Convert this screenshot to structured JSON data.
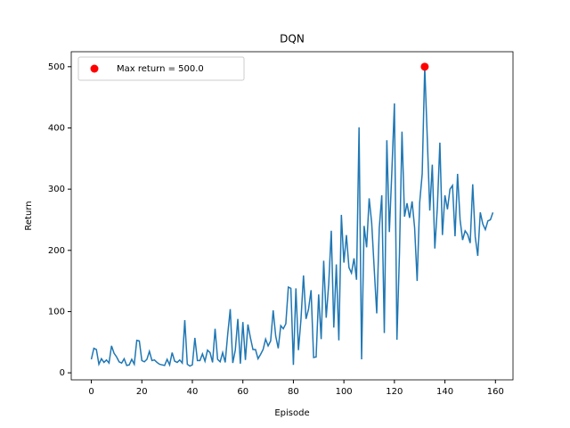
{
  "chart_data": {
    "type": "line",
    "title": "DQN",
    "x_label": "Episode",
    "y_label": "Return",
    "x": [
      0,
      1,
      2,
      3,
      4,
      5,
      6,
      7,
      8,
      9,
      10,
      11,
      12,
      13,
      14,
      15,
      16,
      17,
      18,
      19,
      20,
      21,
      22,
      23,
      24,
      25,
      26,
      27,
      28,
      29,
      30,
      31,
      32,
      33,
      34,
      35,
      36,
      37,
      38,
      39,
      40,
      41,
      42,
      43,
      44,
      45,
      46,
      47,
      48,
      49,
      50,
      51,
      52,
      53,
      54,
      55,
      56,
      57,
      58,
      59,
      60,
      61,
      62,
      63,
      64,
      65,
      66,
      67,
      68,
      69,
      70,
      71,
      72,
      73,
      74,
      75,
      76,
      77,
      78,
      79,
      80,
      81,
      82,
      83,
      84,
      85,
      86,
      87,
      88,
      89,
      90,
      91,
      92,
      93,
      94,
      95,
      96,
      97,
      98,
      99,
      100,
      101,
      102,
      103,
      104,
      105,
      106,
      107,
      108,
      109,
      110,
      111,
      112,
      113,
      114,
      115,
      116,
      117,
      118,
      119,
      120,
      121,
      122,
      123,
      124,
      125,
      126,
      127,
      128,
      129,
      130,
      131,
      132,
      133,
      134,
      135,
      136,
      137,
      138,
      139,
      140,
      141,
      142,
      143,
      144,
      145,
      146,
      147,
      148,
      149,
      150,
      151,
      152,
      153,
      154,
      155,
      156,
      157,
      158,
      159
    ],
    "series": [
      {
        "color": "#1f77b4",
        "values": [
          22,
          40,
          38,
          14,
          23,
          17,
          21,
          16,
          44,
          32,
          26,
          18,
          16,
          23,
          12,
          13,
          22,
          14,
          53,
          52,
          20,
          18,
          22,
          35,
          20,
          21,
          17,
          14,
          13,
          12,
          22,
          13,
          33,
          19,
          17,
          21,
          16,
          86,
          14,
          11,
          13,
          57,
          20,
          20,
          31,
          19,
          37,
          33,
          17,
          72,
          22,
          18,
          33,
          17,
          63,
          104,
          16,
          37,
          88,
          15,
          83,
          21,
          79,
          57,
          38,
          38,
          23,
          30,
          38,
          55,
          44,
          52,
          102,
          60,
          40,
          77,
          72,
          80,
          140,
          138,
          13,
          138,
          37,
          87,
          159,
          88,
          104,
          135,
          25,
          26,
          128,
          55,
          183,
          90,
          146,
          232,
          74,
          177,
          53,
          258,
          180,
          225,
          172,
          163,
          187,
          152,
          401,
          22,
          240,
          205,
          285,
          245,
          170,
          97,
          236,
          290,
          65,
          380,
          230,
          330,
          440,
          54,
          195,
          394,
          255,
          277,
          253,
          280,
          237,
          150,
          278,
          325,
          500,
          385,
          265,
          340,
          203,
          270,
          376,
          225,
          290,
          267,
          300,
          306,
          223,
          325,
          250,
          217,
          232,
          226,
          212,
          308,
          222,
          191,
          262,
          243,
          234,
          248,
          250,
          262
        ]
      }
    ],
    "max_point": {
      "x": 132,
      "y": 500,
      "label": "Max return = 500.0",
      "color": "red"
    },
    "xlim": [
      -7.95,
      166.95
    ],
    "ylim": [
      -11.5,
      524.5
    ],
    "xticks": [
      0,
      20,
      40,
      60,
      80,
      100,
      120,
      140,
      160
    ],
    "yticks": [
      0,
      100,
      200,
      300,
      400,
      500
    ],
    "legend": "upper left"
  }
}
